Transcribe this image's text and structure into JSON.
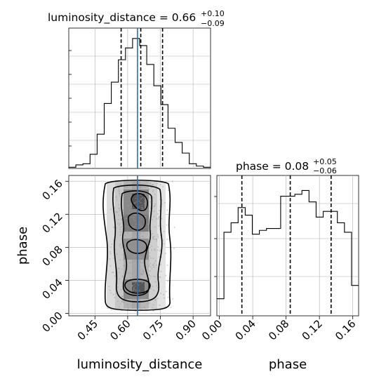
{
  "chart_data": [
    {
      "type": "histogram",
      "panel": "top-left",
      "title_param": "luminosity_distance",
      "title_value": "0.66",
      "title_err_plus": "+0.10",
      "title_err_minus": "−0.09",
      "xlim": [
        0.33,
        0.98
      ],
      "bin_edges": [
        0.33,
        0.3625,
        0.395,
        0.4275,
        0.46,
        0.4925,
        0.525,
        0.5575,
        0.59,
        0.6225,
        0.655,
        0.6875,
        0.72,
        0.7525,
        0.785,
        0.8175,
        0.85,
        0.8825,
        0.915,
        0.9475,
        0.98
      ],
      "counts": [
        1,
        3,
        4,
        12,
        29,
        55,
        73,
        92,
        102,
        110,
        104,
        88,
        70,
        54,
        34,
        22,
        13,
        4,
        2,
        1
      ],
      "quantiles": [
        0.57,
        0.66,
        0.76
      ],
      "truth": 0.645
    },
    {
      "type": "scatter-contour",
      "panel": "bottom-left",
      "xlabel": "luminosity_distance",
      "ylabel": "phase",
      "xlim": [
        0.33,
        0.98
      ],
      "ylim": [
        -0.003,
        0.167
      ],
      "xticks": [
        "0.45",
        "0.60",
        "0.75",
        "0.90"
      ],
      "xtick_values": [
        0.45,
        0.6,
        0.75,
        0.9
      ],
      "yticks": [
        "0.00",
        "0.04",
        "0.08",
        "0.12",
        "0.16"
      ],
      "ytick_values": [
        0.0,
        0.04,
        0.08,
        0.12,
        0.16
      ],
      "truth_x": 0.645,
      "x_range": [
        0.33,
        0.98
      ],
      "y_range": [
        -0.003,
        0.167
      ]
    },
    {
      "type": "histogram",
      "panel": "bottom-right",
      "title_param": "phase",
      "title_value": "0.08",
      "title_err_plus": "+0.05",
      "title_err_minus": "−0.06",
      "xlabel": "phase",
      "xlim": [
        -0.003,
        0.167
      ],
      "xticks": [
        "0.00",
        "0.04",
        "0.08",
        "0.12",
        "0.16"
      ],
      "xtick_values": [
        0.0,
        0.04,
        0.08,
        0.12,
        0.16
      ],
      "bin_edges": [
        -0.003,
        0.0055,
        0.014,
        0.0225,
        0.031,
        0.0395,
        0.048,
        0.0565,
        0.065,
        0.0735,
        0.082,
        0.0905,
        0.099,
        0.1075,
        0.116,
        0.1245,
        0.133,
        0.1415,
        0.15,
        0.1585,
        0.167
      ],
      "counts": [
        9,
        44,
        49,
        57,
        53,
        43,
        45,
        46,
        46,
        63,
        63,
        64,
        66,
        60,
        52,
        55,
        55,
        49,
        44,
        16
      ],
      "quantiles": [
        0.027,
        0.085,
        0.134
      ]
    }
  ]
}
